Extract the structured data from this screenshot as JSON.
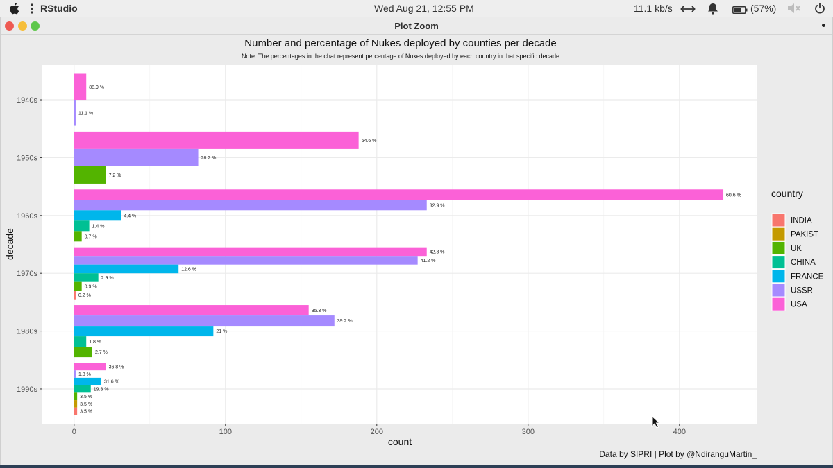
{
  "topbar": {
    "app_name": "RStudio",
    "clock": "Wed Aug 21, 12:55 PM",
    "network_speed": "11.1 kb/s",
    "battery": "(57%)",
    "icons": [
      "apple-icon",
      "menu-dots-icon",
      "network-arrows-icon",
      "bell-icon",
      "battery-icon",
      "volume-muted-icon",
      "power-icon"
    ]
  },
  "window": {
    "title": "Plot Zoom",
    "buttons": {
      "close": "#ee5a52",
      "minimize": "#f6be3a",
      "maximize": "#5dc74a"
    }
  },
  "colors": {
    "INDIA": "#F8766D",
    "PAKIST": "#C49A00",
    "UK": "#53B400",
    "CHINA": "#00C094",
    "FRANCE": "#00B6EB",
    "USSR": "#A58AFF",
    "USA": "#FB61D7"
  },
  "chart_data": {
    "type": "bar",
    "orientation": "horizontal",
    "title": "Number and percentage of Nukes deployed by counties per decade",
    "subtitle": "Note: The percentages in the chat represent percentage of Nukes deployed by each country in that specific decade",
    "xlabel": "count",
    "ylabel": "decade",
    "caption": "Data by SIPRI | Plot by @NdiranguMartin_",
    "xlim": [
      -21,
      451
    ],
    "x_ticks": [
      0,
      100,
      200,
      300,
      400
    ],
    "categories": [
      "1940s",
      "1950s",
      "1960s",
      "1970s",
      "1980s",
      "1990s"
    ],
    "legend_title": "country",
    "legend_position": "right",
    "legend": [
      "INDIA",
      "PAKIST",
      "UK",
      "CHINA",
      "FRANCE",
      "USSR",
      "USA"
    ],
    "groups": [
      {
        "decade": "1940s",
        "bars": [
          {
            "country": "USA",
            "count": 8,
            "label": "88.9 %"
          },
          {
            "country": "USSR",
            "count": 1,
            "label": "11.1 %"
          }
        ]
      },
      {
        "decade": "1950s",
        "bars": [
          {
            "country": "USA",
            "count": 188,
            "label": "64.6 %"
          },
          {
            "country": "USSR",
            "count": 82,
            "label": "28.2 %"
          },
          {
            "country": "UK",
            "count": 21,
            "label": "7.2 %"
          }
        ]
      },
      {
        "decade": "1960s",
        "bars": [
          {
            "country": "USA",
            "count": 429,
            "label": "60.6 %"
          },
          {
            "country": "USSR",
            "count": 233,
            "label": "32.9 %"
          },
          {
            "country": "FRANCE",
            "count": 31,
            "label": "4.4 %"
          },
          {
            "country": "CHINA",
            "count": 10,
            "label": "1.4 %"
          },
          {
            "country": "UK",
            "count": 5,
            "label": "0.7 %"
          }
        ]
      },
      {
        "decade": "1970s",
        "bars": [
          {
            "country": "USA",
            "count": 233,
            "label": "42.3 %"
          },
          {
            "country": "USSR",
            "count": 227,
            "label": "41.2 %"
          },
          {
            "country": "FRANCE",
            "count": 69,
            "label": "12.6 %"
          },
          {
            "country": "CHINA",
            "count": 16,
            "label": "2.9 %"
          },
          {
            "country": "UK",
            "count": 5,
            "label": "0.9 %"
          },
          {
            "country": "INDIA",
            "count": 1,
            "label": "0.2 %"
          }
        ]
      },
      {
        "decade": "1980s",
        "bars": [
          {
            "country": "USA",
            "count": 155,
            "label": "35.3 %"
          },
          {
            "country": "USSR",
            "count": 172,
            "label": "39.2 %"
          },
          {
            "country": "FRANCE",
            "count": 92,
            "label": "21 %"
          },
          {
            "country": "CHINA",
            "count": 8,
            "label": "1.8 %"
          },
          {
            "country": "UK",
            "count": 12,
            "label": "2.7 %"
          }
        ]
      },
      {
        "decade": "1990s",
        "bars": [
          {
            "country": "USA",
            "count": 21,
            "label": "36.8 %"
          },
          {
            "country": "USSR",
            "count": 1,
            "label": "1.8 %"
          },
          {
            "country": "FRANCE",
            "count": 18,
            "label": "31.6 %"
          },
          {
            "country": "CHINA",
            "count": 11,
            "label": "19.3 %"
          },
          {
            "country": "UK",
            "count": 2,
            "label": "3.5 %"
          },
          {
            "country": "PAKIST",
            "count": 2,
            "label": "3.5 %"
          },
          {
            "country": "INDIA",
            "count": 2,
            "label": "3.5 %"
          }
        ]
      }
    ]
  }
}
